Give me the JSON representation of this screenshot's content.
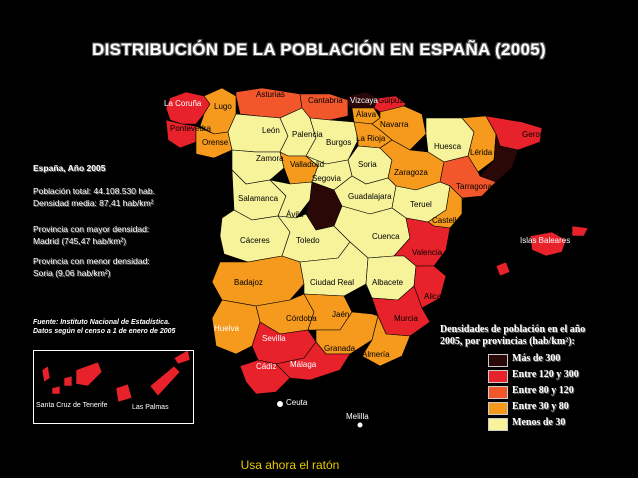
{
  "title": "DISTRIBUCIÓN DE LA POBLACIÓN EN ESPAÑA (2005)",
  "colors": {
    "mas_300": "#2a0808",
    "entre_120_300": "#e8222a",
    "entre_80_120": "#f2572c",
    "entre_30_80": "#f59a1c",
    "menos_30": "#f6f39a",
    "background": "#000000"
  },
  "side_info": {
    "heading": "España, Año 2005",
    "total": "Población total: 44.108.530 hab.",
    "density": "Densidad media: 87,41 hab/km²",
    "max_label": "Provincia con mayor densidad:",
    "max_value": "Madrid (745,47 hab/km²)",
    "min_label": "Provincia con menor densidad:",
    "min_value": "Soria (9,06 hab/km²)",
    "source_1": "Fuente: Instituto Nacional de Estadística.",
    "source_2": "Datos según el censo a 1 de enero de 2005"
  },
  "legend": {
    "title_1": "Densidades de población en el año",
    "title_2": "2005, por provincias (hab/km²):",
    "items": [
      {
        "label": "Más de 300",
        "color": "#2a0808"
      },
      {
        "label": "Entre 120 y 300",
        "color": "#e8222a"
      },
      {
        "label": "Entre 80 y 120",
        "color": "#f2572c"
      },
      {
        "label": "Entre 30 y 80",
        "color": "#f59a1c"
      },
      {
        "label": "Menos de 30",
        "color": "#f6f39a"
      }
    ]
  },
  "provinces": {
    "la_coruna": "La Coruña",
    "lugo": "Lugo",
    "asturias": "Asturias",
    "cantabria": "Cantabria",
    "vizcaya": "Vizcaya",
    "guipuzcoa": "Guipúzcoa",
    "alava": "Álava",
    "navarra": "Navarra",
    "pontevedra": "Pontevedra",
    "orense": "Orense",
    "leon": "León",
    "palencia": "Palencia",
    "burgos": "Burgos",
    "la_rioja": "La Rioja",
    "huesca": "Huesca",
    "gerona": "Gerona",
    "lerida": "Lérida",
    "zamora": "Zamora",
    "valladolid": "Valladolid",
    "soria": "Soria",
    "zaragoza": "Zaragoza",
    "segovia": "Segovia",
    "tarragona": "Tarragona",
    "salamanca": "Salamanca",
    "guadalajara": "Guadalajara",
    "teruel": "Teruel",
    "avila": "Ávila",
    "castellon": "Castellón",
    "caceres": "Cáceres",
    "toledo": "Toledo",
    "cuenca": "Cuenca",
    "valencia": "Valencia",
    "islas_baleares": "Islas Baleares",
    "badajoz": "Badajoz",
    "ciudad_real": "Ciudad Real",
    "albacete": "Albacete",
    "alicante": "Alicante",
    "cordoba": "Córdoba",
    "jaen": "Jaén",
    "murcia": "Murcia",
    "huelva": "Huelva",
    "sevilla": "Sevilla",
    "granada": "Granada",
    "almeria": "Almería",
    "cadiz": "Cádiz",
    "malaga": "Málaga",
    "ceuta": "Ceuta",
    "melilla": "Melilla",
    "santa_cruz": "Santa Cruz de Tenerife",
    "las_palmas": "Las Palmas"
  },
  "footer": "Usa ahora el ratón"
}
